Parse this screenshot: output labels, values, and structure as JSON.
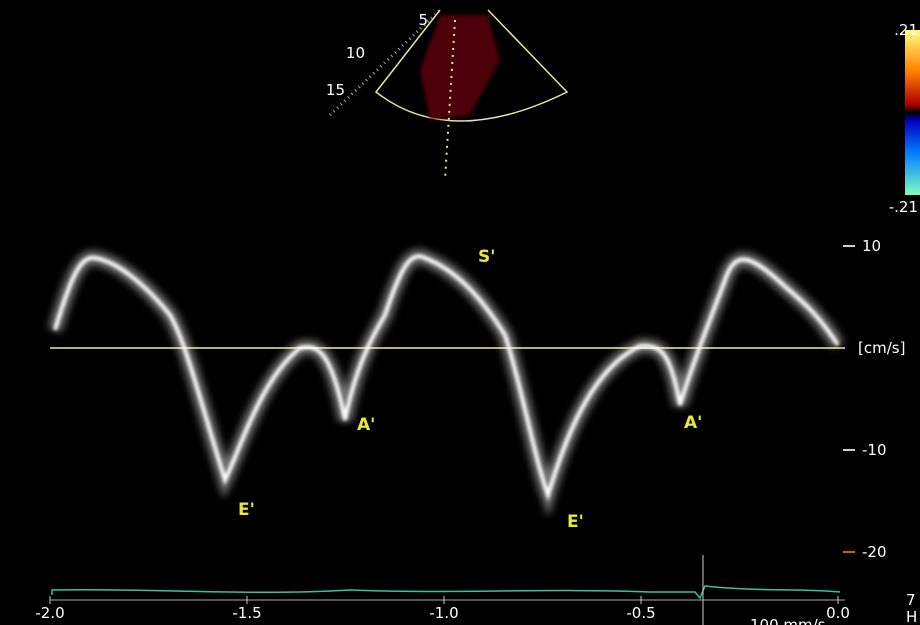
{
  "color_bar": {
    "top_label": ".21",
    "bottom_label": "-.21"
  },
  "sector": {
    "depth_labels": [
      "5",
      "10",
      "15"
    ]
  },
  "annotations": [
    "S'",
    "E'",
    "E'",
    "A'",
    "A'"
  ],
  "velocity_axis": {
    "unit": "[cm/s]",
    "ticks": [
      10,
      -10,
      -20
    ]
  },
  "time_axis": {
    "range": [
      -2,
      0
    ],
    "ticks": [
      {
        "value": -2,
        "label": "-2.0"
      },
      {
        "value": -1.5,
        "label": "-1.5"
      },
      {
        "value": -1,
        "label": "-1.0"
      },
      {
        "value": -0.5,
        "label": "-0.5"
      },
      {
        "value": 0,
        "label": "0.0"
      }
    ],
    "sweep": "100 mm/s"
  },
  "side_labels": [
    "7",
    "H"
  ]
}
